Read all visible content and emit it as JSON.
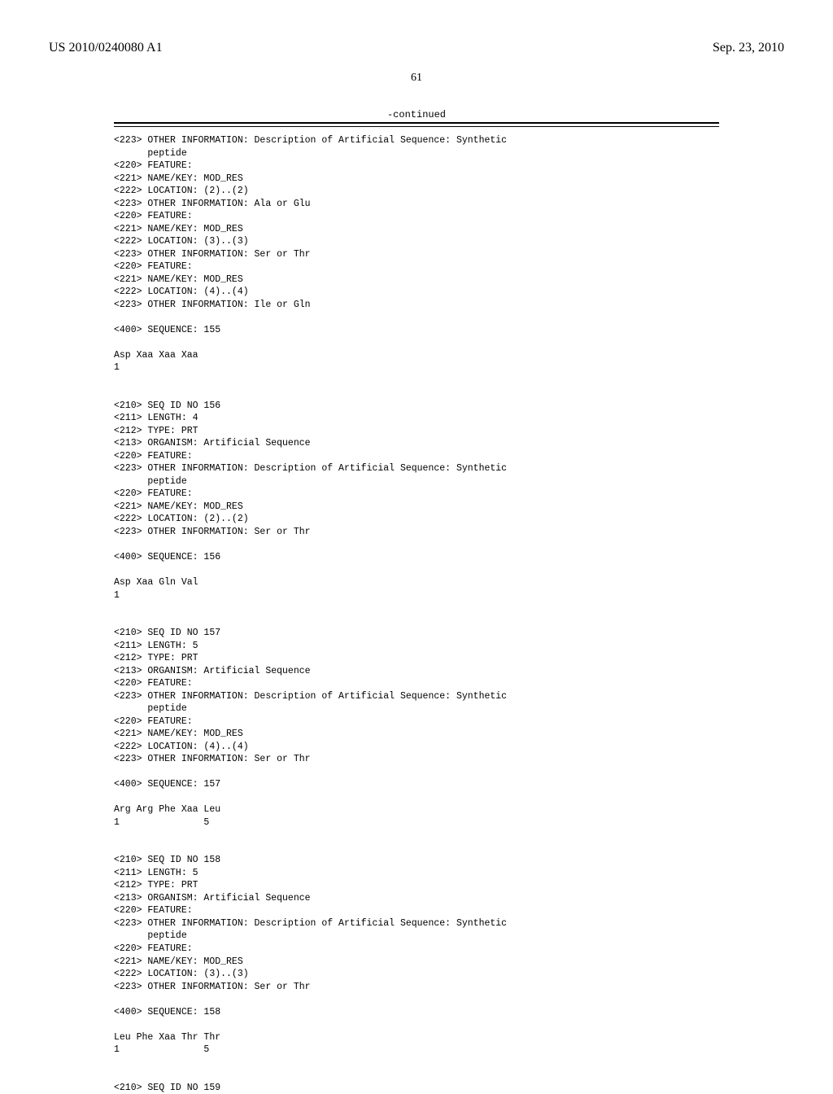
{
  "header": {
    "pub_number": "US 2010/0240080 A1",
    "pub_date": "Sep. 23, 2010"
  },
  "page_number": "61",
  "continued_label": "-continued",
  "sequence_text": "<223> OTHER INFORMATION: Description of Artificial Sequence: Synthetic\n      peptide\n<220> FEATURE:\n<221> NAME/KEY: MOD_RES\n<222> LOCATION: (2)..(2)\n<223> OTHER INFORMATION: Ala or Glu\n<220> FEATURE:\n<221> NAME/KEY: MOD_RES\n<222> LOCATION: (3)..(3)\n<223> OTHER INFORMATION: Ser or Thr\n<220> FEATURE:\n<221> NAME/KEY: MOD_RES\n<222> LOCATION: (4)..(4)\n<223> OTHER INFORMATION: Ile or Gln\n\n<400> SEQUENCE: 155\n\nAsp Xaa Xaa Xaa\n1\n\n\n<210> SEQ ID NO 156\n<211> LENGTH: 4\n<212> TYPE: PRT\n<213> ORGANISM: Artificial Sequence\n<220> FEATURE:\n<223> OTHER INFORMATION: Description of Artificial Sequence: Synthetic\n      peptide\n<220> FEATURE:\n<221> NAME/KEY: MOD_RES\n<222> LOCATION: (2)..(2)\n<223> OTHER INFORMATION: Ser or Thr\n\n<400> SEQUENCE: 156\n\nAsp Xaa Gln Val\n1\n\n\n<210> SEQ ID NO 157\n<211> LENGTH: 5\n<212> TYPE: PRT\n<213> ORGANISM: Artificial Sequence\n<220> FEATURE:\n<223> OTHER INFORMATION: Description of Artificial Sequence: Synthetic\n      peptide\n<220> FEATURE:\n<221> NAME/KEY: MOD_RES\n<222> LOCATION: (4)..(4)\n<223> OTHER INFORMATION: Ser or Thr\n\n<400> SEQUENCE: 157\n\nArg Arg Phe Xaa Leu\n1               5\n\n\n<210> SEQ ID NO 158\n<211> LENGTH: 5\n<212> TYPE: PRT\n<213> ORGANISM: Artificial Sequence\n<220> FEATURE:\n<223> OTHER INFORMATION: Description of Artificial Sequence: Synthetic\n      peptide\n<220> FEATURE:\n<221> NAME/KEY: MOD_RES\n<222> LOCATION: (3)..(3)\n<223> OTHER INFORMATION: Ser or Thr\n\n<400> SEQUENCE: 158\n\nLeu Phe Xaa Thr Thr\n1               5\n\n\n<210> SEQ ID NO 159"
}
